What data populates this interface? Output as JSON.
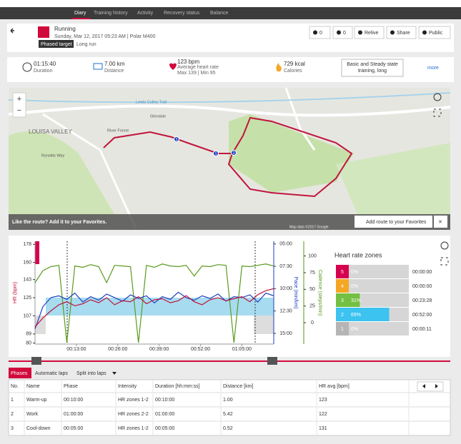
{
  "nav": {
    "tabs": [
      "Diary",
      "Training history",
      "Activity",
      "Recovery status",
      "Balance"
    ]
  },
  "header": {
    "sport": "Running",
    "datetime": "Sunday, Mar 12, 2017 05:23 AM | Polar M400",
    "target_badge": "Phased target",
    "target_name": "Long run",
    "likes": 0,
    "comments": 0,
    "buttons": [
      "Relive",
      "Share",
      "Public"
    ]
  },
  "summary": {
    "duration": "01:15:40",
    "duration_label": "Duration",
    "distance": "7.00 km",
    "distance_label": "Distance",
    "hr": "123 bpm",
    "hr_label": "Average heart rate",
    "hr_range": "Max 139 | Min 95",
    "calories": "729 kcal",
    "calories_label": "Calories",
    "benefit": "Basic and Steady state training, long",
    "more": "more"
  },
  "map": {
    "labels": [
      "LOUISA VALLEY",
      "River Forest",
      "Lewis Cutley Trail",
      "Glendale",
      "Rynolds Way"
    ],
    "markers": [
      "1",
      "2",
      "3"
    ],
    "prompt": "Like the route? Add it to your Favorites.",
    "favorite_button": "Add route to your Favorites",
    "attribution": "Map data ©2017 Google"
  },
  "chart_data": {
    "type": "line",
    "x": [
      0,
      2.5,
      5,
      7.5,
      10,
      12.5,
      15,
      17.5,
      20,
      22.5,
      25,
      27.5,
      30,
      32.5,
      35,
      37.5,
      40,
      42.5,
      45,
      47.5,
      50,
      52.5,
      55,
      57.5,
      60,
      62.5,
      65,
      67.5,
      70,
      72.5,
      75
    ],
    "xlim": [
      0,
      75
    ],
    "xticks": [
      {
        "value": 13,
        "label": "00:13:00"
      },
      {
        "value": 26,
        "label": "00:26:00"
      },
      {
        "value": 39,
        "label": "00:39:00"
      },
      {
        "value": 52,
        "label": "00:52:00"
      },
      {
        "value": 65,
        "label": "01:05:00"
      }
    ],
    "ylabel": "HR (bpm)",
    "ylim": [
      79,
      181
    ],
    "yticks": [
      178,
      160,
      143,
      125,
      107,
      89,
      80
    ],
    "y2label": "Pace (min/km)",
    "y2lim": [
      16.2,
      4.7
    ],
    "y2ticks": [
      {
        "value": 5,
        "label": "05:00"
      },
      {
        "value": 7.5,
        "label": "07:30"
      },
      {
        "value": 10,
        "label": "10:00"
      },
      {
        "value": 12.5,
        "label": "12:30"
      },
      {
        "value": 15,
        "label": "15:00"
      }
    ],
    "y3label": "Cadence (steps/min)",
    "y3lim": [
      -32,
      122
    ],
    "y3ticks": [
      100,
      75,
      50,
      25,
      0
    ],
    "series": [
      {
        "name": "HR",
        "axis": "y",
        "color": "#c0143c",
        "values": [
          96,
          105,
          112,
          118,
          121,
          117,
          119,
          123,
          120,
          125,
          118,
          122,
          121,
          126,
          119,
          123,
          124,
          120,
          122,
          127,
          121,
          118,
          123,
          125,
          122,
          124,
          126,
          121,
          128,
          132,
          134
        ]
      },
      {
        "name": "Pace",
        "axis": "y2",
        "color": "#1f3fbf",
        "values": [
          14.5,
          12.0,
          11.0,
          10.8,
          11.2,
          10.5,
          11.5,
          10.9,
          11.3,
          10.6,
          11.0,
          11.4,
          10.7,
          11.1,
          10.8,
          11.6,
          10.9,
          11.2,
          10.4,
          11.0,
          11.3,
          10.8,
          11.1,
          10.6,
          11.4,
          10.9,
          11.0,
          10.7,
          11.5,
          10.5,
          10.8
        ]
      },
      {
        "name": "Cadence",
        "axis": "y3",
        "color": "#5a9a1e",
        "values": [
          60,
          78,
          84,
          86,
          -30,
          85,
          83,
          87,
          84,
          60,
          86,
          85,
          84,
          -30,
          86,
          83,
          88,
          85,
          84,
          86,
          70,
          85,
          84,
          87,
          86,
          -30,
          85,
          84,
          86,
          88,
          85
        ]
      }
    ]
  },
  "zones": {
    "title": "Heart rate zones",
    "zones": [
      "5",
      "4",
      "3",
      "2",
      "1"
    ],
    "values": [
      0,
      0,
      31,
      69,
      0
    ],
    "value_labels": [
      "0%",
      "0%",
      "31%",
      "69%",
      "0%"
    ],
    "times": [
      "00:00:00",
      "00:00:00",
      "00:23:28",
      "00:52:00",
      "00:00:11"
    ],
    "colors": [
      "#d7004f",
      "#f5a623",
      "#74c043",
      "#3cc3f0",
      "#b5b5b5"
    ]
  },
  "table": {
    "tabs": [
      "Phases",
      "Automatic laps",
      "Split into laps"
    ],
    "columns": [
      "No.",
      "Name",
      "Phase",
      "Intensity",
      "Duration [hh:mm:ss]",
      "Distance [km]",
      "HR avg [bpm]"
    ],
    "rows": [
      [
        "1",
        "Warm-up",
        "00:10:00",
        "HR zones 1-2",
        "00:10:00",
        "1.00",
        "123"
      ],
      [
        "2",
        "Work",
        "01:00:00",
        "HR zones 2-2",
        "01:00:00",
        "5.42",
        "122"
      ],
      [
        "3",
        "Cool-down",
        "00:05:00",
        "HR zones 1-2",
        "00:05:00",
        "0.52",
        "131"
      ]
    ]
  }
}
